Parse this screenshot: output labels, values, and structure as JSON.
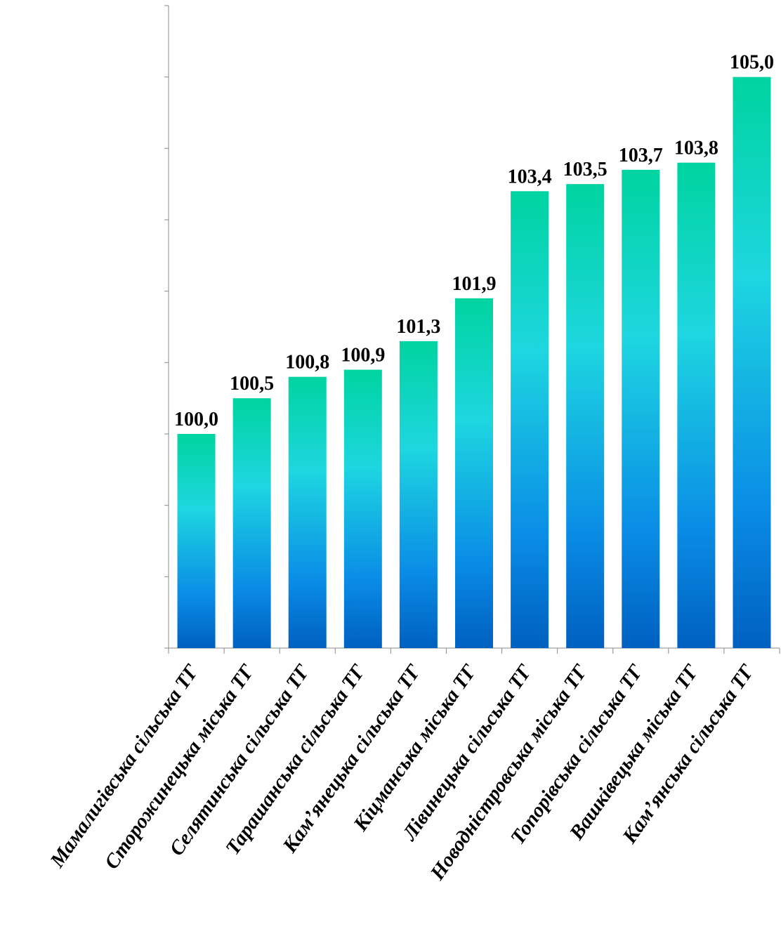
{
  "chart_data": {
    "type": "bar",
    "title": "",
    "xlabel": "",
    "ylabel": "",
    "ylim": [
      97,
      106
    ],
    "grid": false,
    "categories": [
      "Мамалигівська сільська ТГ",
      "Сторожинецька  міська ТГ",
      "Селятинська сільська ТГ",
      "Тарашанська сільська ТГ",
      "Кам’янецька сільська ТГ",
      "Кіцманська міська ТГ",
      "Лівинецька сільська ТГ",
      "Новодністровська  міська ТГ",
      "Топорівська сільська ТГ",
      "Вашківецька міська ТГ",
      "Кам’янська сільська ТГ"
    ],
    "values": [
      100.0,
      100.5,
      100.8,
      100.9,
      101.3,
      101.9,
      103.4,
      103.5,
      103.7,
      103.8,
      105.0
    ],
    "value_labels": [
      "100,0",
      "100,5",
      "100,8",
      "100,9",
      "101,3",
      "101,9",
      "103,4",
      "103,5",
      "103,7",
      "103,8",
      "105,0"
    ],
    "colors": {
      "bar_top": "#00d4a0",
      "bar_mid": "#1ed6e0",
      "bar_low": "#0a8de6",
      "bar_bottom": "#0060c0",
      "axis": "#8a8a8a"
    }
  }
}
